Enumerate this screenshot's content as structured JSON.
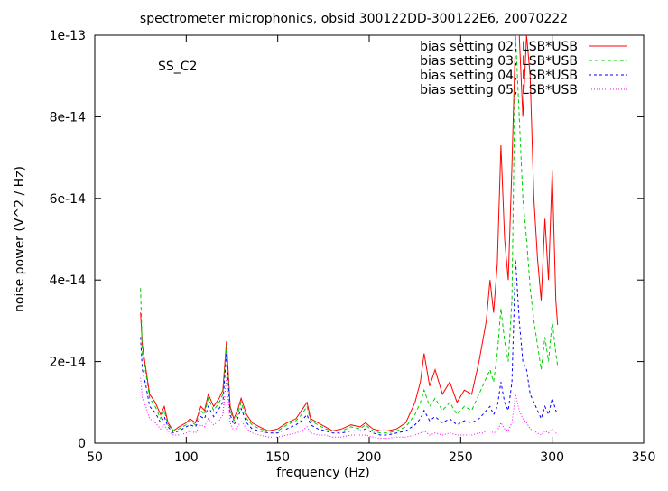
{
  "chart_data": {
    "type": "line",
    "title": "spectrometer microphonics, obsid 300122DD-300122E6, 20070222",
    "annotation": "SS_C2",
    "xlabel": "frequency (Hz)",
    "ylabel": "noise power (V^2 / Hz)",
    "xlim": [
      50,
      350
    ],
    "ylim": [
      0,
      1e-13
    ],
    "x_ticks": [
      50,
      100,
      150,
      200,
      250,
      300,
      350
    ],
    "x_tick_labels": [
      "50",
      "100",
      "150",
      "200",
      "250",
      "300",
      "350"
    ],
    "y_ticks": [
      0,
      2e-14,
      4e-14,
      6e-14,
      8e-14,
      1e-13
    ],
    "y_tick_labels": [
      "0",
      "2e-14",
      "4e-14",
      "6e-14",
      "8e-14",
      "1e-13"
    ],
    "grid": false,
    "legend_position": "top-right",
    "x": [
      75,
      76,
      78,
      80,
      83,
      86,
      88,
      90,
      93,
      96,
      100,
      102,
      105,
      108,
      110,
      112,
      115,
      118,
      120,
      122,
      124,
      126,
      128,
      130,
      133,
      136,
      140,
      145,
      150,
      155,
      160,
      163,
      166,
      168,
      172,
      176,
      180,
      185,
      190,
      195,
      198,
      202,
      206,
      210,
      215,
      220,
      225,
      228,
      230,
      233,
      236,
      240,
      244,
      248,
      252,
      256,
      260,
      262,
      264,
      266,
      268,
      270,
      272,
      274,
      276,
      278,
      280,
      282,
      284,
      286,
      288,
      290,
      292,
      294,
      296,
      298,
      300,
      302,
      303
    ],
    "series": [
      {
        "name": "bias setting 02, LSB*USB",
        "color": "#ff0000",
        "dash": "",
        "values": [
          3.2e-14,
          2.4e-14,
          1.8e-14,
          1.2e-14,
          1e-14,
          7e-15,
          9e-15,
          5e-15,
          3e-15,
          4e-15,
          5e-15,
          6e-15,
          5e-15,
          9e-15,
          8e-15,
          1.2e-14,
          9e-15,
          1.1e-14,
          1.3e-14,
          2.5e-14,
          9e-15,
          6e-15,
          8e-15,
          1.1e-14,
          7e-15,
          5e-15,
          4e-15,
          3e-15,
          3.5e-15,
          5e-15,
          6e-15,
          8e-15,
          1e-14,
          6e-15,
          5e-15,
          4e-15,
          3e-15,
          3.5e-15,
          4.5e-15,
          4e-15,
          5e-15,
          3.5e-15,
          3e-15,
          3e-15,
          3.5e-15,
          5e-15,
          1e-14,
          1.5e-14,
          2.2e-14,
          1.4e-14,
          1.8e-14,
          1.2e-14,
          1.5e-14,
          1e-14,
          1.3e-14,
          1.2e-14,
          2e-14,
          2.5e-14,
          3e-14,
          4e-14,
          3.2e-14,
          4.4e-14,
          7.3e-14,
          5e-14,
          4e-14,
          6.8e-14,
          1e-13,
          1e-13,
          8e-14,
          1e-13,
          9e-14,
          6e-14,
          4.5e-14,
          3.5e-14,
          5.5e-14,
          4e-14,
          6.7e-14,
          3.5e-14,
          2.9e-14
        ]
      },
      {
        "name": "bias setting 03, LSB*USB",
        "color": "#00cc00",
        "dash": "4,3",
        "values": [
          3.8e-14,
          2.2e-14,
          1.7e-14,
          1.1e-14,
          9e-15,
          6e-15,
          8e-15,
          4.5e-15,
          3e-15,
          3.5e-15,
          4.5e-15,
          5.5e-15,
          4.5e-15,
          8e-15,
          7e-15,
          1.1e-14,
          8e-15,
          1e-14,
          1.2e-14,
          2.4e-14,
          8e-15,
          5.5e-15,
          7e-15,
          1e-14,
          6e-15,
          4.5e-15,
          3.5e-15,
          3e-15,
          3e-15,
          4.5e-15,
          5.5e-15,
          7e-15,
          9e-15,
          5.5e-15,
          4.5e-15,
          3.5e-15,
          3e-15,
          3e-15,
          4e-15,
          3.5e-15,
          4.5e-15,
          3e-15,
          2.5e-15,
          2.5e-15,
          3e-15,
          4e-15,
          7e-15,
          1e-14,
          1.3e-14,
          9e-15,
          1.1e-14,
          8e-15,
          1e-14,
          7e-15,
          9e-15,
          8e-15,
          1.2e-14,
          1.4e-14,
          1.6e-14,
          1.8e-14,
          1.5e-14,
          2.2e-14,
          3.3e-14,
          2.5e-14,
          2e-14,
          3.5e-14,
          1e-13,
          8e-14,
          6e-14,
          5e-14,
          3.8e-14,
          3e-14,
          2.4e-14,
          1.8e-14,
          2.6e-14,
          2e-14,
          3e-14,
          2.2e-14,
          1.9e-14
        ]
      },
      {
        "name": "bias setting 04, LSB*USB",
        "color": "#0000ff",
        "dash": "3,3",
        "values": [
          2.6e-14,
          1.8e-14,
          1.4e-14,
          9e-15,
          7.5e-15,
          5e-15,
          6.5e-15,
          4e-15,
          2.5e-15,
          3e-15,
          4e-15,
          4.5e-15,
          4e-15,
          6.5e-15,
          6e-15,
          9e-15,
          6.5e-15,
          8.5e-15,
          1e-14,
          2.2e-14,
          7e-15,
          4.5e-15,
          6e-15,
          8.5e-15,
          5e-15,
          3.5e-15,
          3e-15,
          2.5e-15,
          2.5e-15,
          3.5e-15,
          4.5e-15,
          5.5e-15,
          7e-15,
          4.5e-15,
          3.5e-15,
          3e-15,
          2.5e-15,
          2.5e-15,
          3e-15,
          3e-15,
          3.5e-15,
          2.5e-15,
          2e-15,
          2e-15,
          2.5e-15,
          3e-15,
          4.5e-15,
          6e-15,
          8e-15,
          5.5e-15,
          6.5e-15,
          5e-15,
          6e-15,
          4.5e-15,
          5.5e-15,
          5e-15,
          6e-15,
          7e-15,
          8e-15,
          9e-15,
          7e-15,
          9e-15,
          1.5e-14,
          1e-14,
          8e-15,
          1.5e-14,
          4.5e-14,
          3e-14,
          2e-14,
          1.8e-14,
          1.2e-14,
          1e-14,
          8e-15,
          6e-15,
          9e-15,
          7e-15,
          1.1e-14,
          8e-15,
          7e-15
        ]
      },
      {
        "name": "bias setting 05, LSB*USB",
        "color": "#ff00ff",
        "dash": "1,2",
        "values": [
          1.6e-14,
          1.1e-14,
          9e-15,
          6e-15,
          5e-15,
          3.5e-15,
          4.5e-15,
          3e-15,
          2e-15,
          2e-15,
          2.5e-15,
          3e-15,
          2.5e-15,
          4.5e-15,
          4e-15,
          6e-15,
          4.5e-15,
          5.5e-15,
          7e-15,
          1.6e-14,
          5e-15,
          3e-15,
          4e-15,
          5.5e-15,
          3.5e-15,
          2.5e-15,
          2e-15,
          1.5e-15,
          1.5e-15,
          2e-15,
          2.5e-15,
          3e-15,
          4e-15,
          2.5e-15,
          2e-15,
          2e-15,
          1.5e-15,
          1.5e-15,
          2e-15,
          2e-15,
          2e-15,
          1.5e-15,
          1.2e-15,
          1.2e-15,
          1.5e-15,
          1.5e-15,
          2e-15,
          2.5e-15,
          3e-15,
          2e-15,
          2.5e-15,
          2e-15,
          2.5e-15,
          2e-15,
          2e-15,
          2e-15,
          2.5e-15,
          2.5e-15,
          3e-15,
          3e-15,
          2.5e-15,
          3e-15,
          5e-15,
          3.5e-15,
          3e-15,
          5e-15,
          1.2e-14,
          8e-15,
          6e-15,
          5e-15,
          3.5e-15,
          3e-15,
          2.5e-15,
          2e-15,
          3e-15,
          2.5e-15,
          3.5e-15,
          2.5e-15,
          2e-15
        ]
      }
    ]
  }
}
